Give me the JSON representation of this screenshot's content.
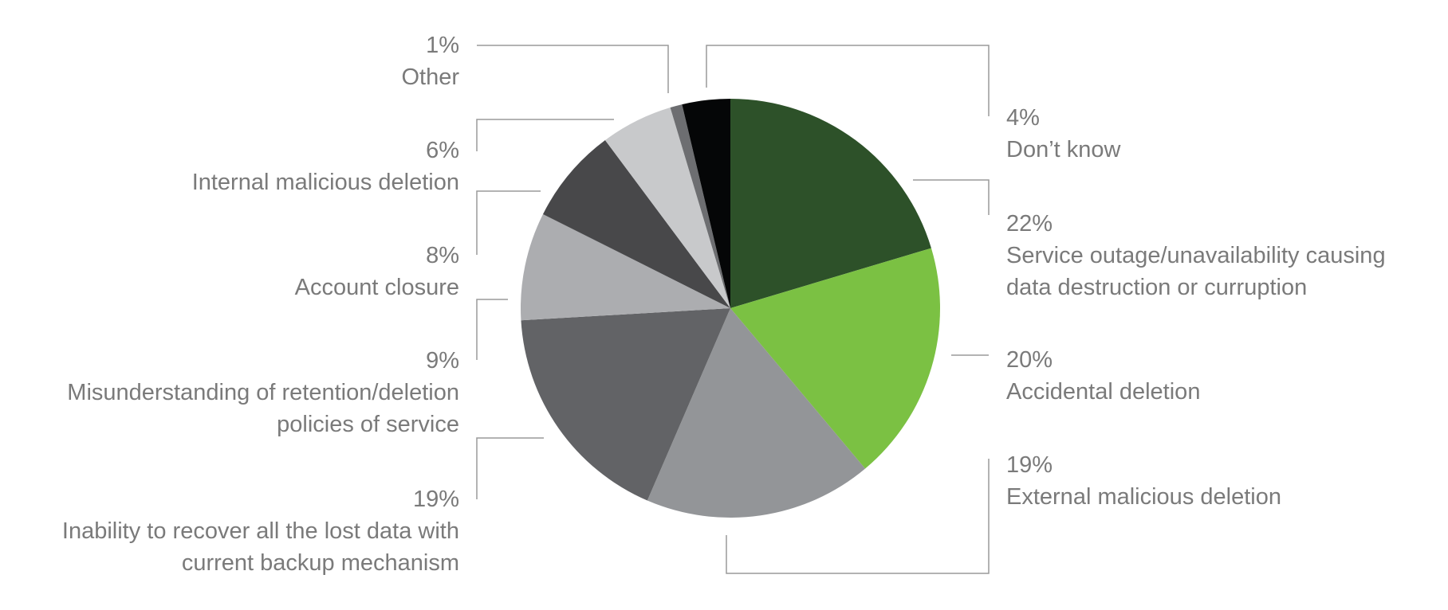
{
  "chart_data": {
    "type": "pie",
    "title": "",
    "slices": [
      {
        "label": "Service outage/unavailability causing data destruction or curruption",
        "value": 22,
        "value_label": "22%",
        "label_lines": [
          "Service outage/unavailability causing",
          "data destruction or curruption"
        ],
        "color": "#2d5129"
      },
      {
        "label": "Accidental deletion",
        "value": 20,
        "value_label": "20%",
        "label_lines": [
          "Accidental deletion"
        ],
        "color": "#7bc143"
      },
      {
        "label": "External malicious deletion",
        "value": 19,
        "value_label": "19%",
        "label_lines": [
          "External malicious deletion"
        ],
        "color": "#939598"
      },
      {
        "label": "Inability to recover all the lost data with current backup mechanism",
        "value": 19,
        "value_label": "19%",
        "label_lines": [
          "Inability to recover all the lost data with",
          "current backup mechanism"
        ],
        "color": "#626366"
      },
      {
        "label": "Misunderstanding of retention/deletion policies of service",
        "value": 9,
        "value_label": "9%",
        "label_lines": [
          "Misunderstanding of retention/deletion",
          "policies of service"
        ],
        "color": "#acadb0"
      },
      {
        "label": "Account closure",
        "value": 8,
        "value_label": "8%",
        "label_lines": [
          "Account closure"
        ],
        "color": "#48484a"
      },
      {
        "label": "Internal malicious deletion",
        "value": 6,
        "value_label": "6%",
        "label_lines": [
          "Internal malicious deletion"
        ],
        "color": "#c8c9cb"
      },
      {
        "label": "Other",
        "value": 1,
        "value_label": "1%",
        "label_lines": [
          "Other"
        ],
        "color": "#6d6e71"
      },
      {
        "label": "Don’t know",
        "value": 4,
        "value_label": "4%",
        "label_lines": [
          "Don’t know"
        ],
        "color": "#050607"
      }
    ],
    "start_angle_deg": 0,
    "direction": "clockwise",
    "legend": "none",
    "labels_placement": "outside with leader lines"
  }
}
